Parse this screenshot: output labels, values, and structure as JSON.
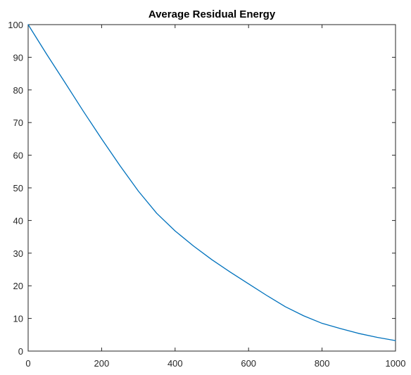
{
  "chart_data": {
    "type": "line",
    "title": "Average Residual Energy",
    "xlabel": "",
    "ylabel": "",
    "xlim": [
      0,
      1000
    ],
    "ylim": [
      0,
      100
    ],
    "xticks": [
      0,
      200,
      400,
      600,
      800,
      1000
    ],
    "yticks": [
      0,
      10,
      20,
      30,
      40,
      50,
      60,
      70,
      80,
      90,
      100
    ],
    "xtick_labels": [
      "0",
      "200",
      "400",
      "600",
      "800",
      "1000"
    ],
    "ytick_labels": [
      "0",
      "10",
      "20",
      "30",
      "40",
      "50",
      "60",
      "70",
      "80",
      "90",
      "100"
    ],
    "grid": false,
    "series": [
      {
        "color": "#0072BD",
        "x": [
          0,
          50,
          100,
          150,
          200,
          250,
          300,
          350,
          400,
          450,
          500,
          550,
          600,
          650,
          700,
          750,
          800,
          850,
          900,
          950,
          1000
        ],
        "y": [
          100,
          91,
          82.3,
          73.5,
          65,
          56.8,
          49,
          42.2,
          36.8,
          32.2,
          28,
          24.2,
          20.6,
          17,
          13.6,
          10.8,
          8.5,
          6.9,
          5.4,
          4.2,
          3.2
        ]
      }
    ],
    "axis_color": "#262626",
    "background": "#ffffff"
  }
}
